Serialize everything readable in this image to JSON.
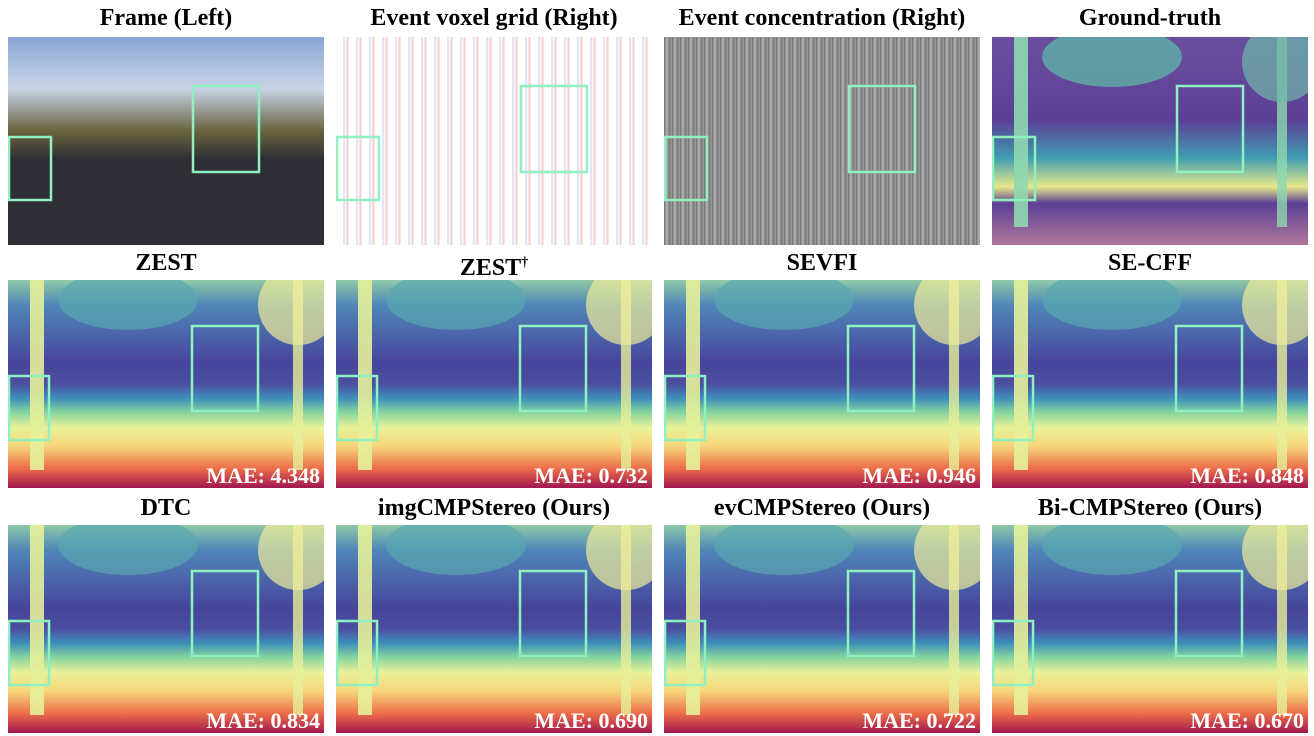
{
  "panels": [
    {
      "title": "Frame (Left)"
    },
    {
      "title": "Event voxel grid (Right)"
    },
    {
      "title": "Event concentration (Right)"
    },
    {
      "title": "Ground-truth"
    },
    {
      "title": "ZEST",
      "mae": "MAE: 4.348"
    },
    {
      "title": "ZEST",
      "title_sup": "†",
      "mae": "MAE: 0.732"
    },
    {
      "title": "SEVFI",
      "mae": "MAE: 0.946"
    },
    {
      "title": "SE-CFF",
      "mae": "MAE: 0.848"
    },
    {
      "title": "DTC",
      "mae": "MAE: 0.834"
    },
    {
      "title": "imgCMPStereo (Ours)",
      "mae": "MAE: 0.690"
    },
    {
      "title": "evCMPStereo (Ours)",
      "mae": "MAE: 0.722"
    },
    {
      "title": "Bi-CMPStereo (Ours)",
      "mae": "MAE: 0.670"
    }
  ]
}
